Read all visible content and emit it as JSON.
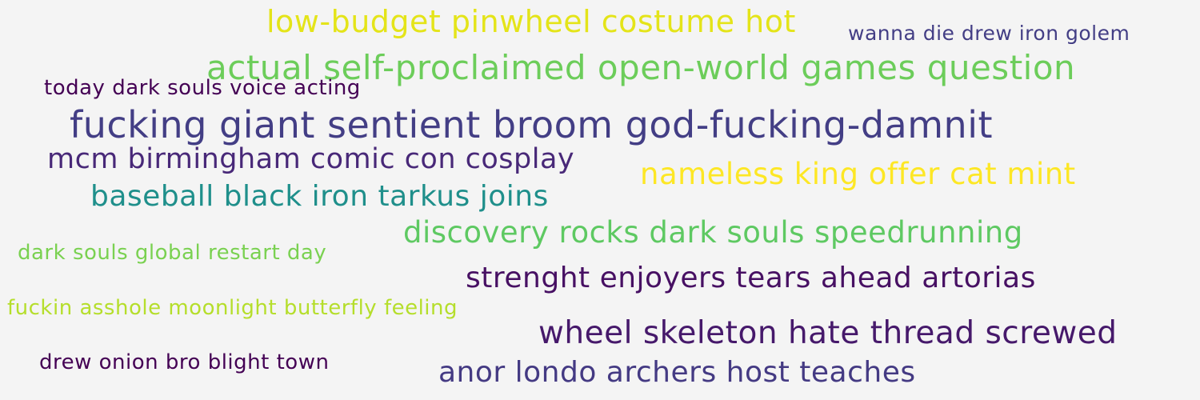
{
  "phrases": [
    {
      "text": "low-budget pinwheel costume hot",
      "color": "#e4e419"
    },
    {
      "text": "wanna die drew iron golem",
      "color": "#433e85"
    },
    {
      "text": "actual self-proclaimed open-world games question",
      "color": "#6ccd5a"
    },
    {
      "text": "today dark souls voice acting",
      "color": "#440154"
    },
    {
      "text": "fucking giant sentient broom god-fucking-damnit",
      "color": "#433e85"
    },
    {
      "text": "mcm birmingham comic con cosplay",
      "color": "#482878"
    },
    {
      "text": "nameless king offer cat mint",
      "color": "#fde725"
    },
    {
      "text": "baseball black iron tarkus joins",
      "color": "#1f8f8b"
    },
    {
      "text": "discovery rocks dark souls speedrunning",
      "color": "#5ec962"
    },
    {
      "text": "dark souls global restart day",
      "color": "#7ad151"
    },
    {
      "text": "strenght enjoyers tears ahead artorias",
      "color": "#471063"
    },
    {
      "text": "fuckin asshole moonlight butterfly feeling",
      "color": "#b5de2b"
    },
    {
      "text": "wheel skeleton hate thread screwed",
      "color": "#46196b"
    },
    {
      "text": "drew onion bro blight town",
      "color": "#440154"
    },
    {
      "text": "anor londo archers host teaches",
      "color": "#443a83"
    }
  ]
}
